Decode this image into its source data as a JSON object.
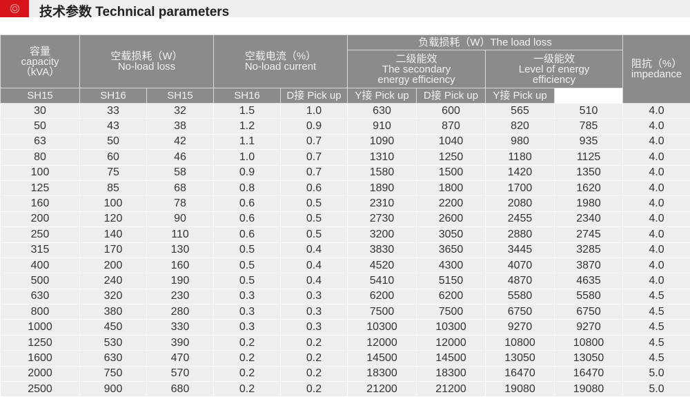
{
  "header": {
    "title": "技术参数 Technical parameters",
    "accent": "#d8141b"
  },
  "table": {
    "capacity": [
      "容量",
      "capacity",
      "（kVA）"
    ],
    "noload_loss": [
      "空载损耗（W）",
      "No-load loss"
    ],
    "noload_current": [
      "空载电流（%）",
      "No-load current"
    ],
    "load_loss": "负载损耗（W）The load loss",
    "secondary": [
      "二级能效",
      "The secondary",
      "energy efficiency"
    ],
    "first": [
      "一级能效",
      "Level of energy",
      "efficiency"
    ],
    "impedance": [
      "阻抗（%）",
      "impedance"
    ],
    "sub": [
      "SH15",
      "SH16",
      "SH15",
      "SH16",
      "D接 Pick up",
      "Y接 Pick up",
      "D接 Pick up",
      "Y接 Pick up"
    ],
    "rows": [
      [
        "30",
        "33",
        "32",
        "1.5",
        "1.0",
        "630",
        "600",
        "565",
        "510",
        "4.0"
      ],
      [
        "50",
        "43",
        "38",
        "1.2",
        "0.9",
        "910",
        "870",
        "820",
        "785",
        "4.0"
      ],
      [
        "63",
        "50",
        "42",
        "1.1",
        "0.7",
        "1090",
        "1040",
        "980",
        "935",
        "4.0"
      ],
      [
        "80",
        "60",
        "46",
        "1.0",
        "0.7",
        "1310",
        "1250",
        "1180",
        "1125",
        "4.0"
      ],
      [
        "100",
        "75",
        "58",
        "0.9",
        "0.7",
        "1580",
        "1500",
        "1420",
        "1350",
        "4.0"
      ],
      [
        "125",
        "85",
        "68",
        "0.8",
        "0.6",
        "1890",
        "1800",
        "1700",
        "1620",
        "4.0"
      ],
      [
        "160",
        "100",
        "78",
        "0.6",
        "0.5",
        "2310",
        "2200",
        "2080",
        "1980",
        "4.0"
      ],
      [
        "200",
        "120",
        "90",
        "0.6",
        "0.5",
        "2730",
        "2600",
        "2455",
        "2340",
        "4.0"
      ],
      [
        "250",
        "140",
        "110",
        "0.6",
        "0.5",
        "3200",
        "3050",
        "2880",
        "2745",
        "4.0"
      ],
      [
        "315",
        "170",
        "130",
        "0.5",
        "0.4",
        "3830",
        "3650",
        "3445",
        "3285",
        "4.0"
      ],
      [
        "400",
        "200",
        "160",
        "0.5",
        "0.4",
        "4520",
        "4300",
        "4070",
        "3870",
        "4.0"
      ],
      [
        "500",
        "240",
        "190",
        "0.5",
        "0.4",
        "5410",
        "5150",
        "4870",
        "4635",
        "4.0"
      ],
      [
        "630",
        "320",
        "230",
        "0.3",
        "0.3",
        "6200",
        "6200",
        "5580",
        "5580",
        "4.5"
      ],
      [
        "800",
        "380",
        "280",
        "0.3",
        "0.3",
        "7500",
        "7500",
        "6750",
        "6750",
        "4.5"
      ],
      [
        "1000",
        "450",
        "330",
        "0.3",
        "0.3",
        "10300",
        "10300",
        "9270",
        "9270",
        "4.5"
      ],
      [
        "1250",
        "530",
        "390",
        "0.2",
        "0.2",
        "12000",
        "12000",
        "10800",
        "10800",
        "4.5"
      ],
      [
        "1600",
        "630",
        "470",
        "0.2",
        "0.2",
        "14500",
        "14500",
        "13050",
        "13050",
        "4.5"
      ],
      [
        "2000",
        "750",
        "570",
        "0.2",
        "0.2",
        "18300",
        "18300",
        "16470",
        "16470",
        "5.0"
      ],
      [
        "2500",
        "900",
        "680",
        "0.2",
        "0.2",
        "21200",
        "21200",
        "19080",
        "19080",
        "5.0"
      ]
    ]
  }
}
